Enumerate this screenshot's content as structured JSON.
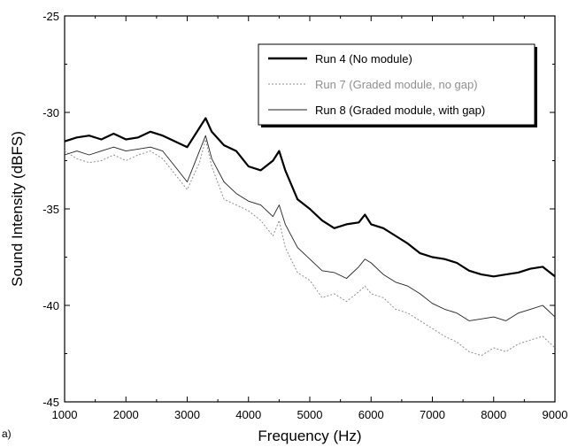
{
  "panel_label": "a)",
  "chart_data": {
    "type": "line",
    "xlabel": "Frequency (Hz)",
    "ylabel": "Sound Intensity (dBFS)",
    "xlim": [
      1000,
      9000
    ],
    "ylim": [
      -45,
      -25
    ],
    "xticks": [
      1000,
      2000,
      3000,
      4000,
      5000,
      6000,
      7000,
      8000,
      9000
    ],
    "yticks": [
      -45,
      -40,
      -35,
      -30,
      -25
    ],
    "grid": false,
    "legend_position": "top-right",
    "x": [
      1000,
      1200,
      1400,
      1600,
      1800,
      2000,
      2200,
      2400,
      2600,
      2800,
      3000,
      3200,
      3300,
      3400,
      3600,
      3800,
      4000,
      4200,
      4400,
      4500,
      4600,
      4800,
      5000,
      5200,
      5400,
      5600,
      5800,
      5900,
      6000,
      6200,
      6400,
      6600,
      6800,
      7000,
      7200,
      7400,
      7600,
      7800,
      8000,
      8200,
      8400,
      8600,
      8800,
      9000
    ],
    "series": [
      {
        "name": "Run 4 (No module)",
        "color": "#000000",
        "style": "solid-thick",
        "values": [
          -31.5,
          -31.3,
          -31.2,
          -31.4,
          -31.1,
          -31.4,
          -31.3,
          -31.0,
          -31.2,
          -31.5,
          -31.8,
          -30.8,
          -30.3,
          -31.0,
          -31.7,
          -32.0,
          -32.8,
          -33.0,
          -32.5,
          -32.0,
          -33.0,
          -34.5,
          -35.0,
          -35.6,
          -36.0,
          -35.8,
          -35.7,
          -35.3,
          -35.8,
          -36.0,
          -36.4,
          -36.8,
          -37.3,
          -37.5,
          -37.6,
          -37.8,
          -38.2,
          -38.4,
          -38.5,
          -38.4,
          -38.3,
          -38.1,
          -38.0,
          -38.5
        ]
      },
      {
        "name": "Run 7 (Graded module, no gap)",
        "color": "#909090",
        "style": "dotted",
        "values": [
          -32.0,
          -32.4,
          -32.6,
          -32.5,
          -32.2,
          -32.5,
          -32.2,
          -32.0,
          -32.4,
          -33.2,
          -34.0,
          -32.6,
          -31.4,
          -32.8,
          -34.5,
          -34.8,
          -35.1,
          -35.6,
          -36.4,
          -35.6,
          -37.0,
          -38.3,
          -38.7,
          -39.6,
          -39.4,
          -39.8,
          -39.3,
          -39.0,
          -39.4,
          -39.6,
          -40.2,
          -40.4,
          -40.8,
          -41.2,
          -41.6,
          -41.9,
          -42.4,
          -42.6,
          -42.2,
          -42.4,
          -42.0,
          -41.8,
          -41.6,
          -42.2
        ]
      },
      {
        "name": "Run 8 (Graded module, with gap)",
        "color": "#222222",
        "style": "solid-thin",
        "values": [
          -32.2,
          -32.0,
          -32.2,
          -32.0,
          -31.8,
          -32.0,
          -31.9,
          -31.8,
          -32.0,
          -32.8,
          -33.6,
          -32.0,
          -31.2,
          -32.4,
          -33.6,
          -34.2,
          -34.6,
          -34.8,
          -35.4,
          -34.8,
          -35.8,
          -37.0,
          -37.6,
          -38.2,
          -38.3,
          -38.6,
          -38.0,
          -37.6,
          -37.8,
          -38.4,
          -38.8,
          -39.0,
          -39.4,
          -39.9,
          -40.2,
          -40.4,
          -40.8,
          -40.7,
          -40.6,
          -40.8,
          -40.4,
          -40.2,
          -40.0,
          -40.6
        ]
      }
    ]
  }
}
